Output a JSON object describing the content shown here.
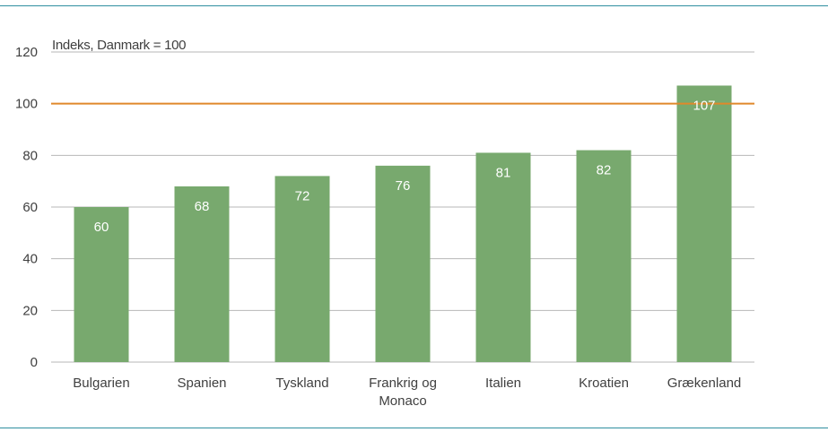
{
  "chart_data": {
    "type": "bar",
    "title": "",
    "ylabel": "Indeks, Danmark = 100",
    "xlabel": "",
    "categories": [
      "Bulgarien",
      "Spanien",
      "Tyskland",
      "Frankrig og Monaco",
      "Italien",
      "Kroatien",
      "Grækenland"
    ],
    "values": [
      60,
      68,
      72,
      76,
      81,
      82,
      107
    ],
    "ylim": [
      0,
      120
    ],
    "yticks": [
      0,
      20,
      40,
      60,
      80,
      100,
      120
    ],
    "reference_line": 100,
    "grid": true,
    "colors": {
      "bar": "#78a96e",
      "reference": "#e0892b",
      "grid": "#b7b7b7",
      "frame": "#2f8fa0",
      "text": "#404040",
      "bar_label": "#ffffff"
    }
  }
}
